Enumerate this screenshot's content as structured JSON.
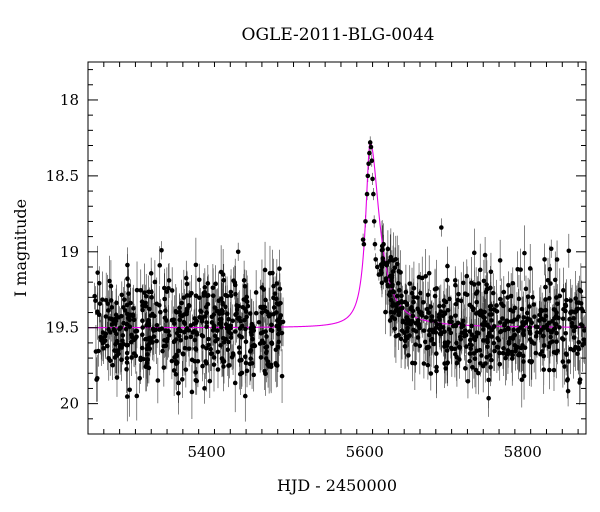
{
  "chart_data": {
    "type": "scatter",
    "title": "OGLE-2011-BLG-0044",
    "xlabel": "HJD - 2450000",
    "ylabel": "I magnitude",
    "xlim": [
      5250,
      5880
    ],
    "ylim": [
      17.75,
      20.2
    ],
    "y_inverted": true,
    "grid": false,
    "x_ticks": [
      5400,
      5600,
      5800
    ],
    "x_tick_labels": [
      "5400",
      "5600",
      "5800"
    ],
    "y_ticks": [
      18,
      18.5,
      19,
      19.5,
      20
    ],
    "y_tick_labels": [
      "18",
      "18.5",
      "19",
      "19.5",
      "20"
    ],
    "colors": {
      "points": "#000000",
      "model": "#e600e6"
    },
    "model": {
      "baseline": 19.5,
      "peak_time": 5607,
      "peak_mag": 18.28,
      "rise_timescale": 7,
      "decay_timescale": 14
    },
    "observations": {
      "season1_range": [
        5258,
        5498
      ],
      "season2_range": [
        5620,
        5878
      ],
      "baseline_mag": 19.5,
      "scatter": 0.17,
      "error_bar": 0.12,
      "peak_points": [
        {
          "x": 5598,
          "y": 18.92
        },
        {
          "x": 5599,
          "y": 18.95
        },
        {
          "x": 5601,
          "y": 18.8
        },
        {
          "x": 5603,
          "y": 18.62
        },
        {
          "x": 5604,
          "y": 18.5
        },
        {
          "x": 5605,
          "y": 18.42
        },
        {
          "x": 5606,
          "y": 18.35
        },
        {
          "x": 5607,
          "y": 18.28
        },
        {
          "x": 5608,
          "y": 18.31
        },
        {
          "x": 5609,
          "y": 18.4
        },
        {
          "x": 5610,
          "y": 18.52
        },
        {
          "x": 5611,
          "y": 18.62
        },
        {
          "x": 5612,
          "y": 18.8
        },
        {
          "x": 5613,
          "y": 18.95
        },
        {
          "x": 5614,
          "y": 19.05
        },
        {
          "x": 5616,
          "y": 19.1
        },
        {
          "x": 5618,
          "y": 19.15
        }
      ],
      "outliers": [
        {
          "x": 5343,
          "y": 18.99
        },
        {
          "x": 5440,
          "y": 19.0
        },
        {
          "x": 5697,
          "y": 18.84
        },
        {
          "x": 5836,
          "y": 18.98
        }
      ]
    }
  }
}
